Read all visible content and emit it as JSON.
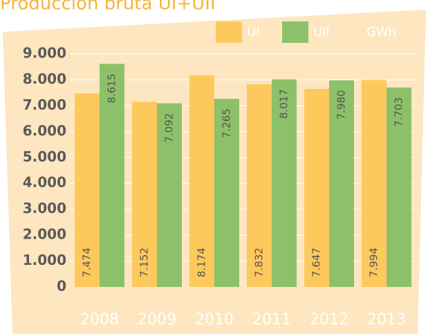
{
  "chart_data": {
    "type": "bar",
    "title": "Producción bruta UI+UII",
    "unit": "GWh",
    "categories": [
      "2008",
      "2009",
      "2010",
      "2011",
      "2012",
      "2013"
    ],
    "series": [
      {
        "name": "UI",
        "color": "#fdc95c",
        "values": [
          7474,
          7152,
          8174,
          7832,
          7647,
          7994
        ],
        "value_labels": [
          "7.474",
          "7.152",
          "8.174",
          "7.832",
          "7.647",
          "7.994"
        ]
      },
      {
        "name": "UII",
        "color": "#8dc169",
        "values": [
          8615,
          7092,
          7265,
          8017,
          7980,
          7703
        ],
        "value_labels": [
          "8.615",
          "7.092",
          "7.265",
          "8.017",
          "7.980",
          "7.703"
        ]
      }
    ],
    "ylim": [
      0,
      9000
    ],
    "yticks": [
      0,
      {
        "value": 1000,
        "label": "1.000"
      },
      {
        "value": 2000,
        "label": "2.000"
      },
      {
        "value": 3000,
        "label": "3.000"
      },
      {
        "value": 4000,
        "label": "4.000"
      },
      {
        "value": 5000,
        "label": "5.000"
      },
      {
        "value": 6000,
        "label": "6.000"
      },
      {
        "value": 7000,
        "label": "7.000"
      },
      {
        "value": 8000,
        "label": "8.000"
      },
      {
        "value": 9000,
        "label": "9.000"
      }
    ],
    "grid": true
  }
}
